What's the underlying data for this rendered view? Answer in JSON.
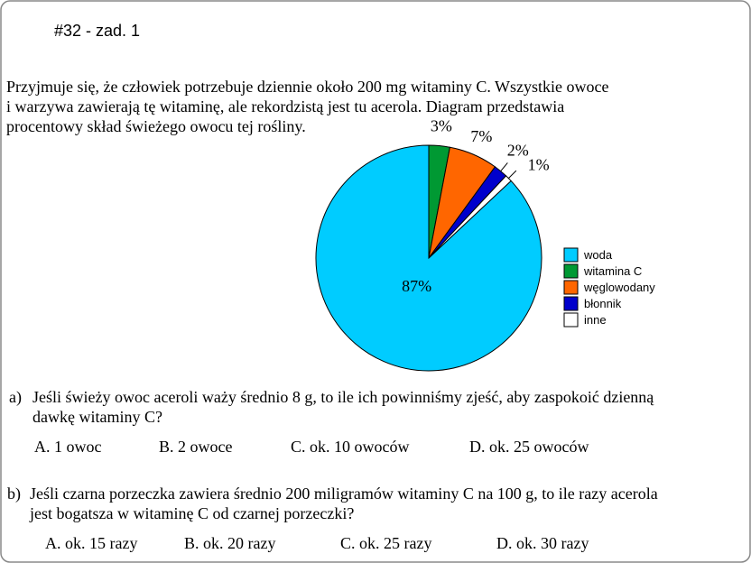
{
  "header": {
    "title": "#32 - zad. 1"
  },
  "intro": [
    "Przyjmuje się, że człowiek potrzebuje dziennie około 200 mg witaminy C. Wszystkie owoce",
    "i warzywa zawierają tę witaminę, ale rekordzistą jest tu acerola. Diagram przedstawia",
    "procentowy skład świeżego owocu tej rośliny."
  ],
  "chart_data": {
    "type": "pie",
    "categories": [
      "woda",
      "witamina C",
      "węglowodany",
      "błonnik",
      "inne"
    ],
    "values": [
      87,
      3,
      7,
      2,
      1
    ],
    "value_labels": [
      "87%",
      "3%",
      "7%",
      "2%",
      "1%"
    ],
    "colors": [
      "#00ccff",
      "#009933",
      "#ff6600",
      "#0000cc",
      "#ffffff"
    ]
  },
  "questions": [
    {
      "label": "a)",
      "lines": [
        "Jeśli świeży owoc aceroli waży średnio 8 g, to ile ich powinniśmy zjeść, aby zaspokoić dzienną",
        "dawkę witaminy C?"
      ],
      "options": [
        "A. 1 owoc",
        "B. 2 owoce",
        "C. ok. 10 owoców",
        "D. ok. 25 owoców"
      ]
    },
    {
      "label": "b)",
      "lines": [
        "Jeśli czarna porzeczka zawiera średnio 200 miligramów witaminy C na 100 g, to ile razy acerola",
        "jest bogatsza w witaminę C od czarnej porzeczki?"
      ],
      "options": [
        "A. ok. 15 razy",
        "B.  ok. 20 razy",
        "C.  ok. 25 razy",
        "D. ok. 30 razy"
      ]
    }
  ]
}
